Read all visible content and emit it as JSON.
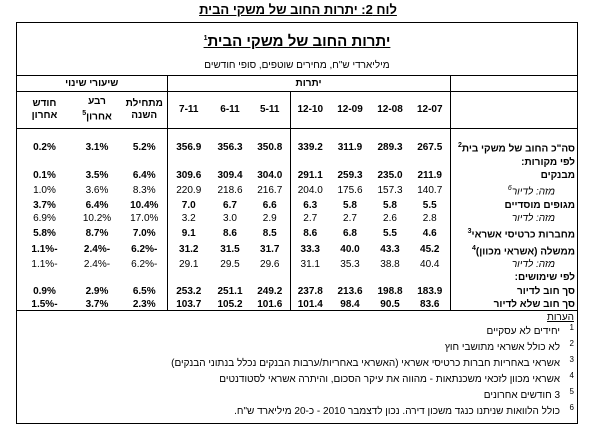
{
  "caption": "לוח 2: יתרות החוב של משקי הבית",
  "table": {
    "title": "יתרות החוב של משקי הבית",
    "title_note": "1",
    "subtitle": "מיליארדי ש\"ח, מחירים שוטפים, סופי חודשים",
    "group_headers": [
      "יתרות",
      "שיעורי שינוי"
    ],
    "columns": [
      {
        "label": "12-07"
      },
      {
        "label": "12-08"
      },
      {
        "label": "12-09"
      },
      {
        "label": "12-10"
      },
      {
        "label": "5-11"
      },
      {
        "label": "6-11"
      },
      {
        "label": "7-11"
      },
      {
        "label": "מתחילת השנה"
      },
      {
        "label": "רבע אחרון",
        "note": "5"
      },
      {
        "label": "חודש אחרון"
      }
    ],
    "rows": [
      {
        "label": "סה\"כ החוב של משקי בית",
        "note": "2",
        "values": [
          "267.5",
          "289.3",
          "311.9",
          "339.2",
          "350.8",
          "356.3",
          "356.9",
          "5.2%",
          "3.1%",
          "0.2%"
        ]
      },
      {
        "label": "לפי מקורות:"
      },
      {
        "label": "מבנקים",
        "values": [
          "211.9",
          "235.0",
          "259.3",
          "291.1",
          "304.0",
          "309.4",
          "309.6",
          "6.4%",
          "3.5%",
          "0.1%"
        ]
      },
      {
        "label": "מזה: לדיור",
        "note": "6",
        "italic": true,
        "values": [
          "140.7",
          "157.3",
          "175.6",
          "204.0",
          "216.7",
          "218.6",
          "220.9",
          "8.3%",
          "3.6%",
          "1.0%"
        ]
      },
      {
        "label": "מגופים מוסדיים",
        "values": [
          "5.5",
          "5.8",
          "5.8",
          "6.3",
          "6.6",
          "6.7",
          "7.0",
          "10.4%",
          "6.4%",
          "3.7%"
        ]
      },
      {
        "label": "מזה: לדיור",
        "italic": true,
        "values": [
          "2.8",
          "2.6",
          "2.7",
          "2.7",
          "2.9",
          "3.0",
          "3.2",
          "17.0%",
          "10.2%",
          "6.9%"
        ]
      },
      {
        "label": "מחברות כרטיסי אשראי",
        "note": "3",
        "values": [
          "4.6",
          "5.5",
          "6.8",
          "8.6",
          "8.5",
          "8.6",
          "9.1",
          "7.0%",
          "8.7%",
          "5.8%"
        ]
      },
      {
        "label": "ממשלה (אשראי מכוון)",
        "note": "4",
        "values": [
          "45.2",
          "43.3",
          "40.0",
          "33.3",
          "31.7",
          "31.5",
          "31.2",
          "-6.2%",
          "-2.4%",
          "-1.1%"
        ]
      },
      {
        "label": "מזה: לדיור",
        "italic": true,
        "values": [
          "40.4",
          "38.8",
          "35.3",
          "31.1",
          "29.6",
          "29.5",
          "29.1",
          "-6.2%",
          "-2.4%",
          "-1.1%"
        ]
      },
      {
        "label": "לפי שימושים:"
      },
      {
        "label": "סך חוב לדיור",
        "values": [
          "183.9",
          "198.8",
          "213.6",
          "237.8",
          "249.2",
          "251.1",
          "253.2",
          "6.5%",
          "2.9%",
          "0.9%"
        ]
      },
      {
        "label": "סך חוב שלא לדיור",
        "values": [
          "83.6",
          "90.5",
          "98.4",
          "101.4",
          "101.6",
          "105.2",
          "103.7",
          "2.3%",
          "3.7%",
          "-1.5%"
        ]
      }
    ]
  },
  "notes": {
    "title": "הערות",
    "items": [
      {
        "number": "1",
        "text": "יחידים לא עסקיים"
      },
      {
        "number": "2",
        "text": "לא כולל אשראי מתושבי חוץ"
      },
      {
        "number": "3",
        "text": "אשראי באחריות חברות כרטיסי אשראי (האשראי באחריות/ערבות הבנקים נכלל בנתוני הבנקים)"
      },
      {
        "number": "4",
        "text": "אשראי מכוון לזכאי משכנתאות - מהווה את עיקר הסכום, והיתרה אשראי לסטודנטים"
      },
      {
        "number": "5",
        "text": "3 חודשים אחרונים"
      },
      {
        "number": "6",
        "text": "כולל הלוואות שניתנו כנגד משכון דירה. נכון לדצמבר 2010 - כ-20 מיליארד ש\"ח."
      }
    ]
  }
}
